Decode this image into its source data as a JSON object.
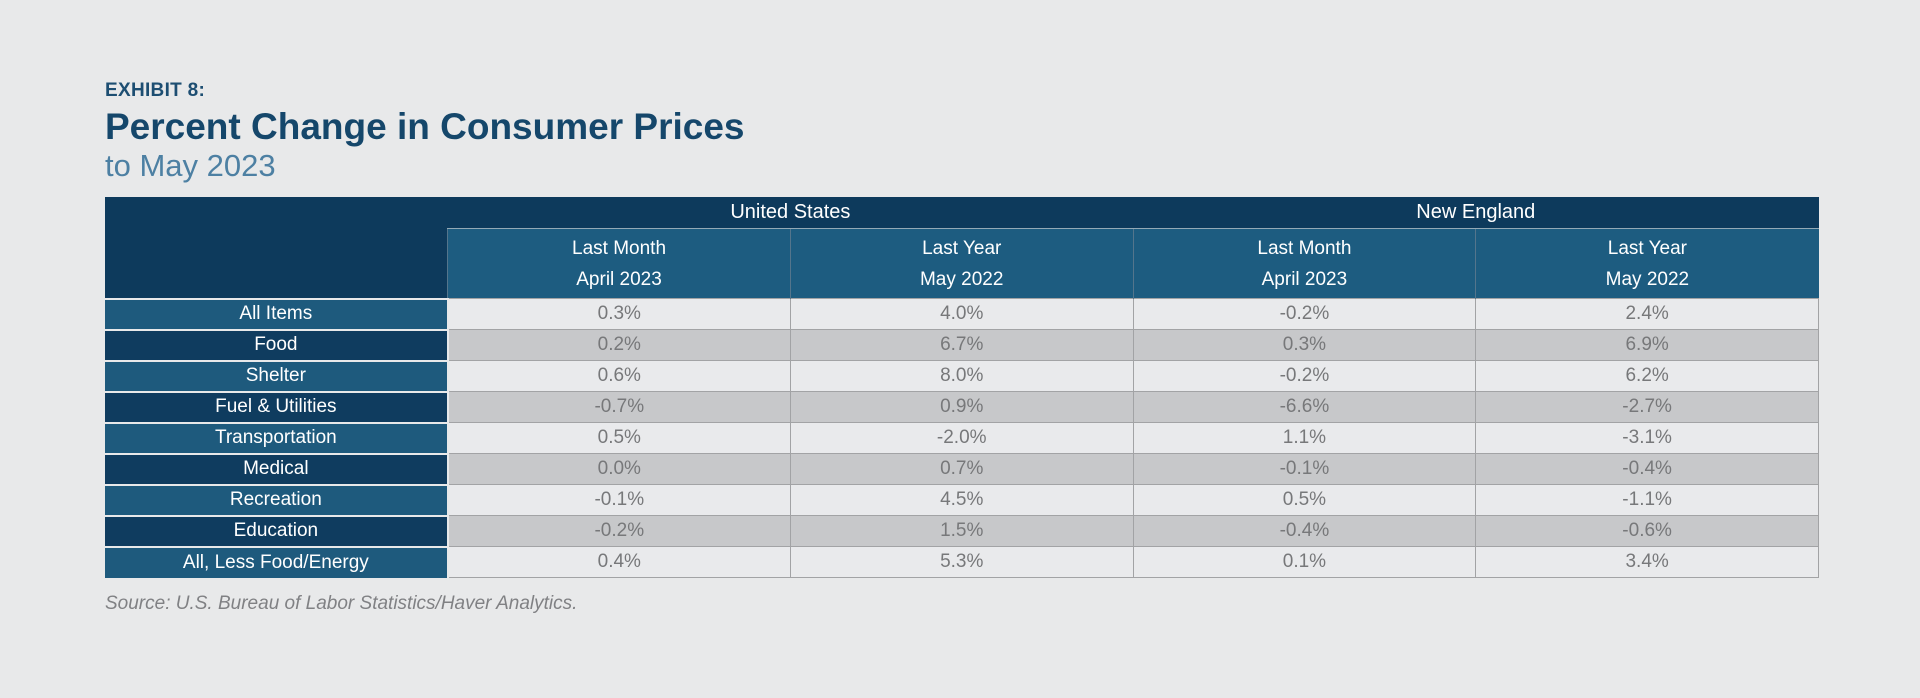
{
  "page": {
    "exhibit_label": "EXHIBIT 8:",
    "title": "Percent Change in Consumer Prices",
    "subtitle": "to May 2023",
    "source": "Source: U.S. Bureau of Labor Statistics/Haver Analytics."
  },
  "colors": {
    "page_bg": "#e8e9ea",
    "header_dark_navy": "#0d3a5c",
    "header_medium_blue": "#1d5c80",
    "row_label_light_blue": "#1e5a7d",
    "row_label_dark_navy": "#0f3c5f",
    "cell_light_gray": "#e9eaec",
    "cell_dark_gray": "#c7c8ca",
    "title_dark_blue": "#15476b",
    "subtitle_steel_blue": "#4d80a3",
    "data_text_gray": "#77787a"
  },
  "table": {
    "region_headers": [
      {
        "label": "United States"
      },
      {
        "label": "New England"
      }
    ],
    "sub_headers": [
      {
        "line1": "Last Month",
        "line2": "April 2023"
      },
      {
        "line1": "Last Year",
        "line2": "May 2022"
      },
      {
        "line1": "Last Month",
        "line2": "April 2023"
      },
      {
        "line1": "Last Year",
        "line2": "May 2022"
      }
    ],
    "rows": [
      {
        "label": "All Items",
        "values": [
          "0.3%",
          "4.0%",
          "-0.2%",
          "2.4%"
        ]
      },
      {
        "label": "Food",
        "values": [
          "0.2%",
          "6.7%",
          "0.3%",
          "6.9%"
        ]
      },
      {
        "label": "Shelter",
        "values": [
          "0.6%",
          "8.0%",
          "-0.2%",
          "6.2%"
        ]
      },
      {
        "label": "Fuel & Utilities",
        "values": [
          "-0.7%",
          "0.9%",
          "-6.6%",
          "-2.7%"
        ]
      },
      {
        "label": "Transportation",
        "values": [
          "0.5%",
          "-2.0%",
          "1.1%",
          "-3.1%"
        ]
      },
      {
        "label": "Medical",
        "values": [
          "0.0%",
          "0.7%",
          "-0.1%",
          "-0.4%"
        ]
      },
      {
        "label": "Recreation",
        "values": [
          "-0.1%",
          "4.5%",
          "0.5%",
          "-1.1%"
        ]
      },
      {
        "label": "Education",
        "values": [
          "-0.2%",
          "1.5%",
          "-0.4%",
          "-0.6%"
        ]
      },
      {
        "label": "All, Less Food/Energy",
        "values": [
          "0.4%",
          "5.3%",
          "0.1%",
          "3.4%"
        ]
      }
    ]
  },
  "chart_data": {
    "type": "table",
    "title": "Percent Change in Consumer Prices",
    "subtitle": "to May 2023",
    "exhibit": "EXHIBIT 8:",
    "unit": "%",
    "column_groups": [
      "United States",
      "New England"
    ],
    "columns": [
      "United States - Last Month (April 2023)",
      "United States - Last Year (May 2022)",
      "New England - Last Month (April 2023)",
      "New England - Last Year (May 2022)"
    ],
    "categories": [
      "All Items",
      "Food",
      "Shelter",
      "Fuel & Utilities",
      "Transportation",
      "Medical",
      "Recreation",
      "Education",
      "All, Less Food/Energy"
    ],
    "series": [
      {
        "name": "United States - Last Month (April 2023)",
        "values": [
          0.3,
          0.2,
          0.6,
          -0.7,
          0.5,
          0.0,
          -0.1,
          -0.2,
          0.4
        ]
      },
      {
        "name": "United States - Last Year (May 2022)",
        "values": [
          4.0,
          6.7,
          8.0,
          0.9,
          -2.0,
          0.7,
          4.5,
          1.5,
          5.3
        ]
      },
      {
        "name": "New England - Last Month (April 2023)",
        "values": [
          -0.2,
          0.3,
          -0.2,
          -6.6,
          1.1,
          -0.1,
          0.5,
          -0.4,
          0.1
        ]
      },
      {
        "name": "New England - Last Year (May 2022)",
        "values": [
          2.4,
          6.9,
          6.2,
          -2.7,
          -3.1,
          -0.4,
          -1.1,
          -0.6,
          3.4
        ]
      }
    ],
    "source": "Source: U.S. Bureau of Labor Statistics/Haver Analytics."
  }
}
